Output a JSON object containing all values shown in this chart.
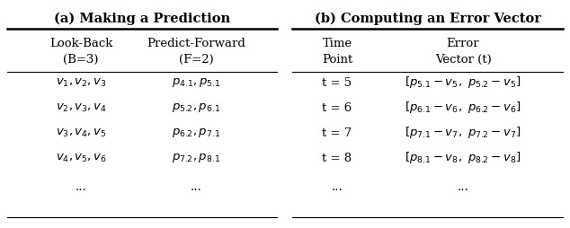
{
  "title_a": "(a) Making a Prediction",
  "title_b": "(b) Computing an Error Vector",
  "table_a_col1_header": "Look-Back\n(B=3)",
  "table_a_col2_header": "Predict-Forward\n(F=2)",
  "table_b_col1_header": "Time\nPoint",
  "table_b_col2_header": "Error\nVector (t)",
  "table_a_rows": [
    [
      "$v_1, v_2, v_3$",
      "$p_{4.1}, p_{5.1}$"
    ],
    [
      "$v_2, v_3, v_4$",
      "$p_{5.2}, p_{6.1}$"
    ],
    [
      "$v_3, v_4, v_5$",
      "$p_{6.2}, p_{7.1}$"
    ],
    [
      "$v_4, v_5, v_6$",
      "$p_{7.2}, p_{8.1}$"
    ],
    [
      "...",
      "..."
    ]
  ],
  "table_b_rows": [
    [
      "t = 5",
      "$[p_{5.1} - v_5,\\ p_{5.2} - v_5]$"
    ],
    [
      "t = 6",
      "$[p_{6.1} - v_6,\\ p_{6.2} - v_6]$"
    ],
    [
      "t = 7",
      "$[p_{7.1} - v_7,\\ p_{7.2} - v_7]$"
    ],
    [
      "t = 8",
      "$[p_{8.1} - v_8,\\ p_{8.2} - v_8]$"
    ],
    [
      "...",
      "..."
    ]
  ],
  "bg_color": "#ffffff",
  "text_color": "#000000",
  "fontsize": 9.5,
  "title_fontsize": 10.5
}
